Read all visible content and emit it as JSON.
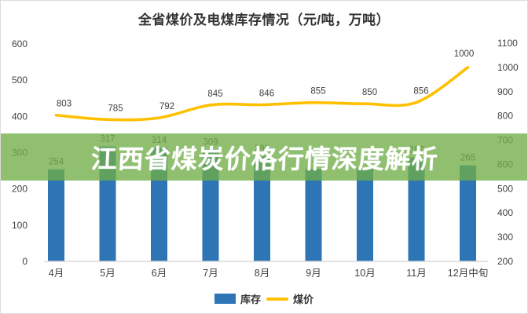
{
  "title": "全省煤价及电煤库存情况（元/吨，万吨）",
  "overlay": {
    "headline": "江西省煤炭价格行情深度解析",
    "background": "rgba(112,173,71,0.78)",
    "text_color": "#ffffff"
  },
  "legend": {
    "items": [
      {
        "label": "库存",
        "type": "bar",
        "color": "#2E75B6"
      },
      {
        "label": "煤价",
        "type": "line",
        "color": "#FFC000"
      }
    ]
  },
  "axes": {
    "left_ticks": [
      "0",
      "100",
      "200",
      "300",
      "400",
      "500",
      "600"
    ],
    "right_ticks": [
      "200",
      "300",
      "400",
      "500",
      "600",
      "700",
      "800",
      "900",
      "1000",
      "1100"
    ]
  },
  "chart_data": {
    "type": "bar",
    "subtype": "combo-bar-line",
    "title": "全省煤价及电煤库存情况（元/吨，万吨）",
    "categories": [
      "4月",
      "5月",
      "6月",
      "7月",
      "8月",
      "9月",
      "10月",
      "11月",
      "12月中旬"
    ],
    "series": [
      {
        "name": "库存",
        "type": "bar",
        "axis": "left",
        "color": "#2E75B6",
        "values": [
          254,
          317,
          314,
          309,
          290,
          255,
          258,
          287,
          265
        ],
        "labels": [
          "254",
          "317",
          "314",
          "309",
          "290",
          "",
          "",
          "287",
          "265"
        ]
      },
      {
        "name": "煤价",
        "type": "line",
        "axis": "right",
        "color": "#FFC000",
        "values": [
          803,
          785,
          792,
          845,
          846,
          855,
          850,
          856,
          1000
        ],
        "labels": [
          "803",
          "785",
          "792",
          "845",
          "846",
          "855",
          "850",
          "856",
          "1000"
        ]
      }
    ],
    "left_axis": {
      "min": 0,
      "max": 600,
      "step": 100
    },
    "right_axis": {
      "min": 200,
      "max": 1100,
      "step": 100
    },
    "grid": false,
    "legend_position": "bottom"
  },
  "colors": {
    "bar": "#2E75B6",
    "line": "#FFC000",
    "banner": "rgba(112,173,71,0.78)",
    "tick_text": "#404040",
    "axis_line": "#d9d9d9",
    "label_text": "#3f3f3f"
  }
}
